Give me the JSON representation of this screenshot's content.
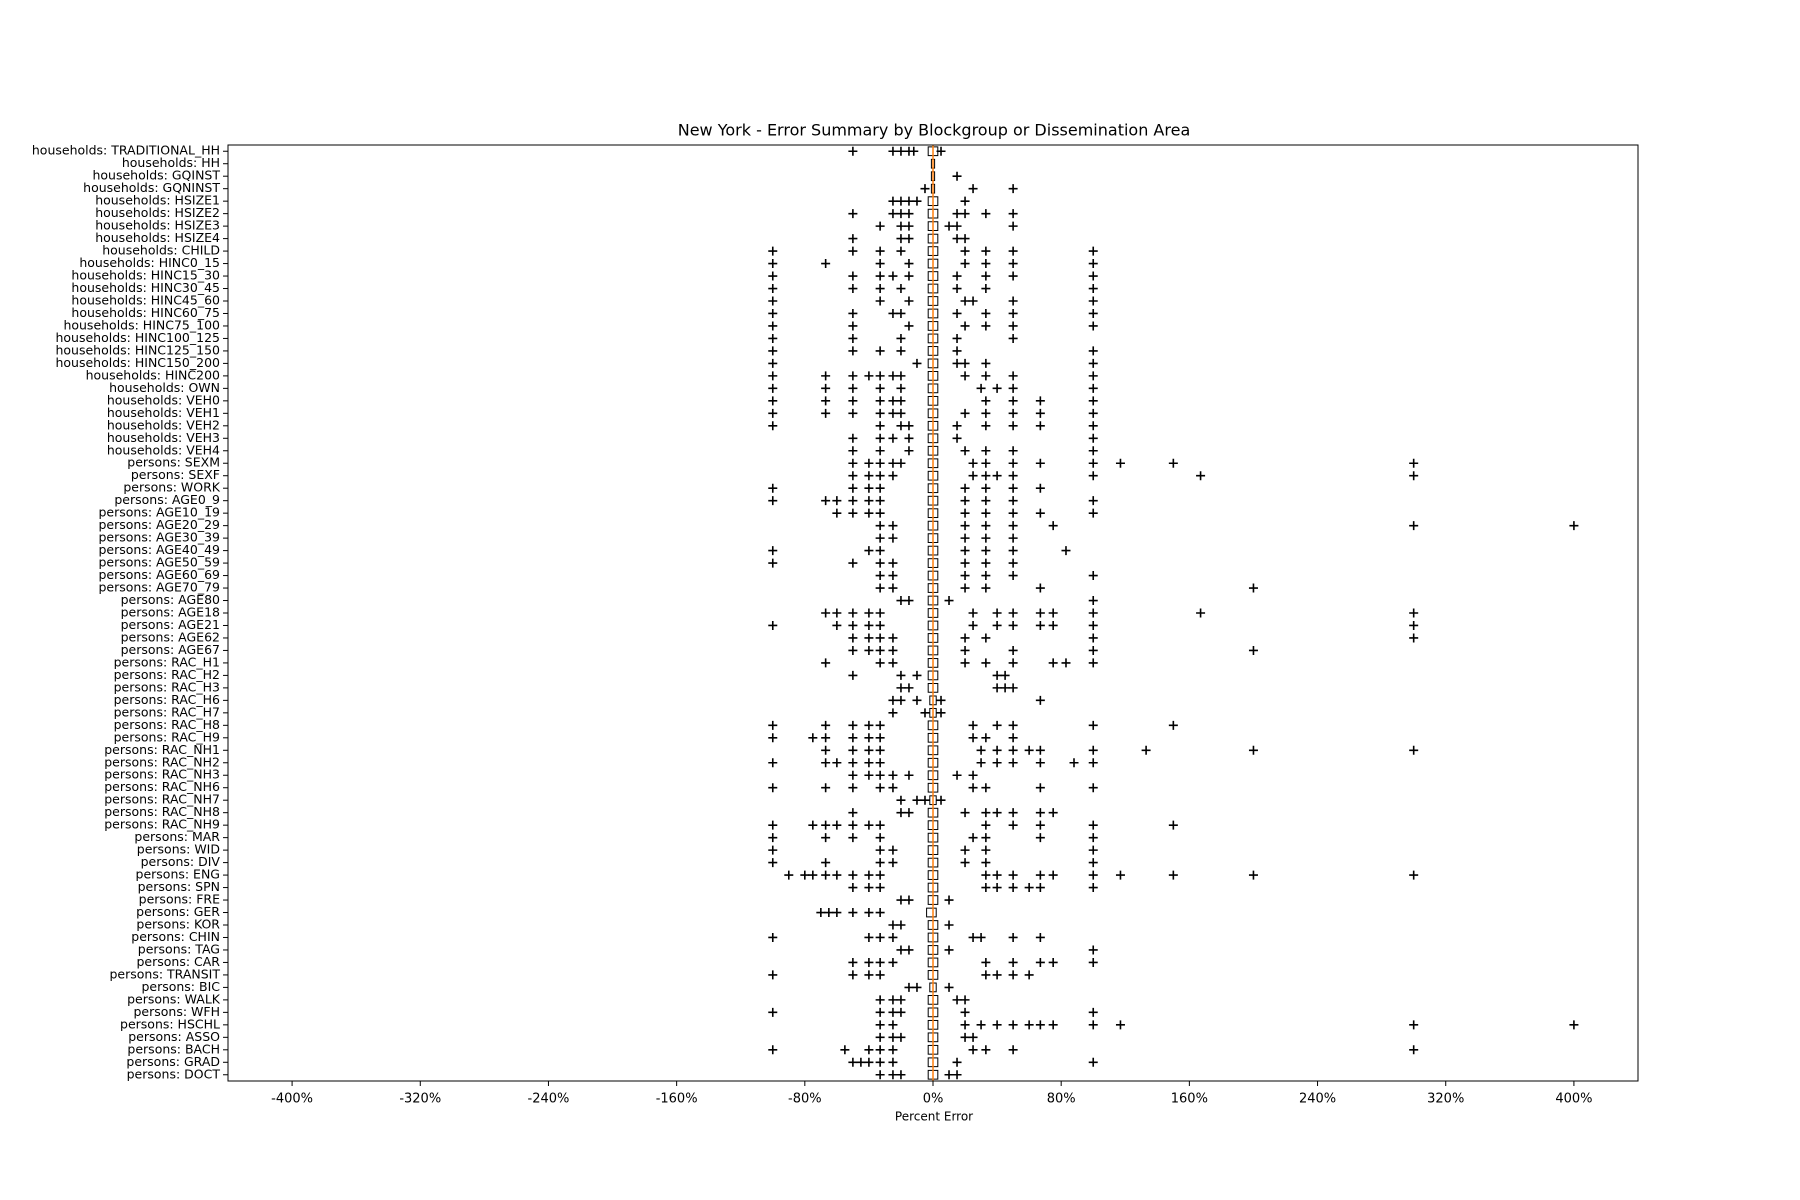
{
  "chart_data": {
    "type": "boxplot",
    "orientation": "horizontal",
    "title": "New York - Error Summary by Blockgroup or Dissemination Area",
    "x_label": "Percent Error",
    "xlim": [
      -440,
      440
    ],
    "xticks": [
      {
        "value": -400,
        "label": "-400%"
      },
      {
        "value": -320,
        "label": "-320%"
      },
      {
        "value": -240,
        "label": "-240%"
      },
      {
        "value": -160,
        "label": "-160%"
      },
      {
        "value": -80,
        "label": "-80%"
      },
      {
        "value": 0,
        "label": "0%"
      },
      {
        "value": 80,
        "label": "80%"
      },
      {
        "value": 160,
        "label": "160%"
      },
      {
        "value": 240,
        "label": "240%"
      },
      {
        "value": 320,
        "label": "320%"
      },
      {
        "value": 400,
        "label": "400%"
      }
    ],
    "median_color": "#ff7f0e",
    "flier_color": "#000000",
    "categories": [
      "households: TRADITIONAL_HH",
      "households: HH",
      "households: GQINST",
      "households: GQNINST",
      "households: HSIZE1",
      "households: HSIZE2",
      "households: HSIZE3",
      "households: HSIZE4",
      "households: CHILD",
      "households: HINC0_15",
      "households: HINC15_30",
      "households: HINC30_45",
      "households: HINC45_60",
      "households: HINC60_75",
      "households: HINC75_100",
      "households: HINC100_125",
      "households: HINC125_150",
      "households: HINC150_200",
      "households: HINC200",
      "households: OWN",
      "households: VEH0",
      "households: VEH1",
      "households: VEH2",
      "households: VEH3",
      "households: VEH4",
      "persons: SEXM",
      "persons: SEXF",
      "persons: WORK",
      "persons: AGE0_9",
      "persons: AGE10_19",
      "persons: AGE20_29",
      "persons: AGE30_39",
      "persons: AGE40_49",
      "persons: AGE50_59",
      "persons: AGE60_69",
      "persons: AGE70_79",
      "persons: AGE80",
      "persons: AGE18",
      "persons: AGE21",
      "persons: AGE62",
      "persons: AGE67",
      "persons: RAC_H1",
      "persons: RAC_H2",
      "persons: RAC_H3",
      "persons: RAC_H6",
      "persons: RAC_H7",
      "persons: RAC_H8",
      "persons: RAC_H9",
      "persons: RAC_NH1",
      "persons: RAC_NH2",
      "persons: RAC_NH3",
      "persons: RAC_NH6",
      "persons: RAC_NH7",
      "persons: RAC_NH8",
      "persons: RAC_NH9",
      "persons: MAR",
      "persons: WID",
      "persons: DIV",
      "persons: ENG",
      "persons: SPN",
      "persons: FRE",
      "persons: GER",
      "persons: KOR",
      "persons: CHIN",
      "persons: TAG",
      "persons: CAR",
      "persons: TRANSIT",
      "persons: BIC",
      "persons: WALK",
      "persons: WFH",
      "persons: HSCHL",
      "persons: ASSO",
      "persons: BACH",
      "persons: GRAD",
      "persons: DOCT"
    ],
    "median": [
      0,
      0,
      0,
      0,
      0,
      0,
      0,
      0,
      0,
      0,
      0,
      0,
      0,
      0,
      0,
      0,
      0,
      0,
      0,
      0,
      0,
      0,
      0,
      0,
      0,
      0,
      0,
      0,
      0,
      0,
      0,
      0,
      0,
      0,
      0,
      0,
      0,
      0,
      0,
      0,
      0,
      0,
      0,
      0,
      0,
      0,
      0,
      0,
      0,
      0,
      0,
      0,
      0,
      0,
      0,
      0,
      0,
      0,
      0,
      0,
      0,
      0,
      0,
      0,
      0,
      0,
      0,
      0,
      0,
      0,
      0,
      0,
      0,
      0,
      0
    ],
    "q1": [
      -3,
      -1,
      -1,
      -1,
      -3,
      -3,
      -3,
      -3,
      -3,
      -3,
      -3,
      -3,
      -3,
      -3,
      -3,
      -3,
      -3,
      -3,
      -3,
      -3,
      -3,
      -3,
      -3,
      -3,
      -3,
      -3,
      -3,
      -3,
      -3,
      -3,
      -3,
      -3,
      -3,
      -3,
      -3,
      -3,
      -3,
      -3,
      -3,
      -3,
      -3,
      -3,
      -3,
      -3,
      -2,
      -2,
      -3,
      -3,
      -3,
      -3,
      -3,
      -3,
      -2,
      -3,
      -3,
      -3,
      -3,
      -3,
      -3,
      -3,
      -3,
      -4,
      -3,
      -3,
      -3,
      -3,
      -3,
      -2,
      -3,
      -3,
      -3,
      -3,
      -3,
      -3,
      -3
    ],
    "q3": [
      3,
      1,
      1,
      1,
      3,
      3,
      3,
      3,
      3,
      3,
      3,
      3,
      3,
      3,
      3,
      3,
      3,
      3,
      3,
      3,
      3,
      3,
      3,
      3,
      3,
      3,
      3,
      3,
      3,
      3,
      3,
      3,
      3,
      3,
      3,
      3,
      3,
      3,
      3,
      3,
      3,
      3,
      3,
      3,
      2,
      2,
      3,
      3,
      3,
      3,
      3,
      3,
      2,
      3,
      3,
      3,
      3,
      3,
      3,
      3,
      3,
      2,
      3,
      3,
      3,
      3,
      3,
      2,
      3,
      3,
      3,
      3,
      3,
      3,
      3
    ],
    "fliers": [
      [
        -50,
        -25,
        -20,
        -15,
        -12,
        5
      ],
      [],
      [
        15
      ],
      [
        -5,
        25,
        50
      ],
      [
        -25,
        -20,
        -15,
        -10,
        20
      ],
      [
        -50,
        -25,
        -20,
        -15,
        15,
        20,
        33,
        50
      ],
      [
        -33,
        -20,
        -15,
        10,
        15,
        50
      ],
      [
        -50,
        -20,
        -15,
        15,
        20
      ],
      [
        -100,
        -50,
        -33,
        -20,
        20,
        33,
        50,
        100
      ],
      [
        -100,
        -67,
        -33,
        -15,
        20,
        33,
        50,
        100
      ],
      [
        -100,
        -50,
        -33,
        -25,
        -15,
        15,
        33,
        50,
        100
      ],
      [
        -100,
        -50,
        -33,
        -20,
        15,
        33,
        100
      ],
      [
        -100,
        -33,
        -15,
        20,
        25,
        50,
        100
      ],
      [
        -100,
        -50,
        -25,
        -20,
        15,
        33,
        50,
        100
      ],
      [
        -100,
        -50,
        -15,
        20,
        33,
        50,
        100
      ],
      [
        -100,
        -50,
        -20,
        15,
        50
      ],
      [
        -100,
        -50,
        -33,
        -20,
        15,
        100
      ],
      [
        -100,
        -10,
        15,
        20,
        33,
        100
      ],
      [
        -100,
        -67,
        -50,
        -40,
        -33,
        -25,
        -20,
        20,
        33,
        50,
        100
      ],
      [
        -100,
        -67,
        -50,
        -33,
        -20,
        30,
        40,
        50,
        100
      ],
      [
        -100,
        -67,
        -50,
        -33,
        -25,
        -20,
        33,
        50,
        67,
        100
      ],
      [
        -100,
        -67,
        -50,
        -33,
        -25,
        -20,
        20,
        33,
        50,
        67,
        100
      ],
      [
        -100,
        -33,
        -20,
        -15,
        15,
        33,
        50,
        67,
        100
      ],
      [
        -50,
        -33,
        -25,
        -15,
        15,
        100
      ],
      [
        -50,
        -33,
        -15,
        20,
        33,
        50,
        100
      ],
      [
        -50,
        -40,
        -33,
        -25,
        -20,
        25,
        33,
        50,
        67,
        100,
        117,
        150,
        300
      ],
      [
        -50,
        -40,
        -33,
        -25,
        25,
        33,
        40,
        50,
        100,
        167,
        300
      ],
      [
        -100,
        -50,
        -40,
        -33,
        20,
        33,
        50,
        67
      ],
      [
        -100,
        -67,
        -60,
        -50,
        -40,
        -33,
        20,
        33,
        50,
        100
      ],
      [
        -60,
        -50,
        -40,
        -33,
        20,
        33,
        50,
        67,
        100
      ],
      [
        -33,
        -25,
        20,
        33,
        50,
        75,
        300,
        400
      ],
      [
        -33,
        -25,
        20,
        33,
        50
      ],
      [
        -100,
        -40,
        -33,
        20,
        33,
        50,
        83
      ],
      [
        -100,
        -50,
        -33,
        -25,
        20,
        33,
        50
      ],
      [
        -33,
        -25,
        20,
        33,
        50,
        100
      ],
      [
        -33,
        -25,
        20,
        33,
        67,
        200
      ],
      [
        -20,
        -15,
        10,
        100
      ],
      [
        -67,
        -60,
        -50,
        -40,
        -33,
        25,
        40,
        50,
        67,
        75,
        100,
        167,
        300
      ],
      [
        -100,
        -60,
        -50,
        -40,
        -33,
        25,
        40,
        50,
        67,
        75,
        100,
        300
      ],
      [
        -50,
        -40,
        -33,
        -25,
        20,
        33,
        100,
        300
      ],
      [
        -50,
        -40,
        -33,
        -25,
        20,
        50,
        100,
        200
      ],
      [
        -67,
        -33,
        -25,
        20,
        33,
        50,
        75,
        83,
        100
      ],
      [
        -50,
        -20,
        -10,
        40,
        45
      ],
      [
        -20,
        -15,
        40,
        45,
        50
      ],
      [
        -25,
        -20,
        -10,
        5,
        67
      ],
      [
        -25,
        -5,
        5
      ],
      [
        -100,
        -67,
        -50,
        -40,
        -33,
        25,
        40,
        50,
        100,
        150
      ],
      [
        -100,
        -75,
        -67,
        -50,
        -40,
        -33,
        25,
        33,
        50
      ],
      [
        -67,
        -50,
        -40,
        -33,
        30,
        40,
        50,
        60,
        67,
        100,
        133,
        200,
        300
      ],
      [
        -100,
        -67,
        -60,
        -50,
        -40,
        -33,
        30,
        40,
        50,
        67,
        88,
        100
      ],
      [
        -50,
        -40,
        -33,
        -25,
        -15,
        15,
        25
      ],
      [
        -100,
        -67,
        -50,
        -33,
        -25,
        25,
        33,
        67,
        100
      ],
      [
        -20,
        -10,
        -5,
        5
      ],
      [
        -50,
        -20,
        -15,
        20,
        33,
        40,
        50,
        67,
        75
      ],
      [
        -100,
        -75,
        -67,
        -60,
        -50,
        -40,
        -33,
        33,
        50,
        67,
        100,
        150
      ],
      [
        -100,
        -67,
        -50,
        -33,
        25,
        33,
        67,
        100
      ],
      [
        -100,
        -33,
        -25,
        20,
        33,
        100
      ],
      [
        -100,
        -67,
        -33,
        -25,
        20,
        33,
        100
      ],
      [
        -90,
        -80,
        -75,
        -67,
        -60,
        -50,
        -40,
        -33,
        33,
        40,
        50,
        67,
        75,
        100,
        117,
        150,
        200,
        300
      ],
      [
        -50,
        -40,
        -33,
        33,
        40,
        50,
        60,
        67,
        100
      ],
      [
        -20,
        -15,
        10
      ],
      [
        -70,
        -65,
        -60,
        -50,
        -40,
        -33
      ],
      [
        -25,
        -20,
        10
      ],
      [
        -100,
        -40,
        -33,
        -25,
        25,
        30,
        50,
        67
      ],
      [
        -20,
        -15,
        10,
        100
      ],
      [
        -50,
        -40,
        -33,
        -25,
        33,
        50,
        67,
        75,
        100
      ],
      [
        -100,
        -50,
        -40,
        -33,
        33,
        40,
        50,
        60
      ],
      [
        -15,
        -10,
        10
      ],
      [
        -33,
        -25,
        -20,
        15,
        20
      ],
      [
        -100,
        -33,
        -25,
        -20,
        20,
        100
      ],
      [
        -33,
        -25,
        20,
        30,
        40,
        50,
        60,
        67,
        75,
        100,
        117,
        300,
        400
      ],
      [
        -33,
        -25,
        -20,
        20,
        25
      ],
      [
        -100,
        -55,
        -40,
        -33,
        -25,
        25,
        33,
        50,
        300
      ],
      [
        -50,
        -45,
        -40,
        -33,
        -25,
        15,
        100
      ],
      [
        -33,
        -25,
        -20,
        10,
        15
      ]
    ]
  }
}
